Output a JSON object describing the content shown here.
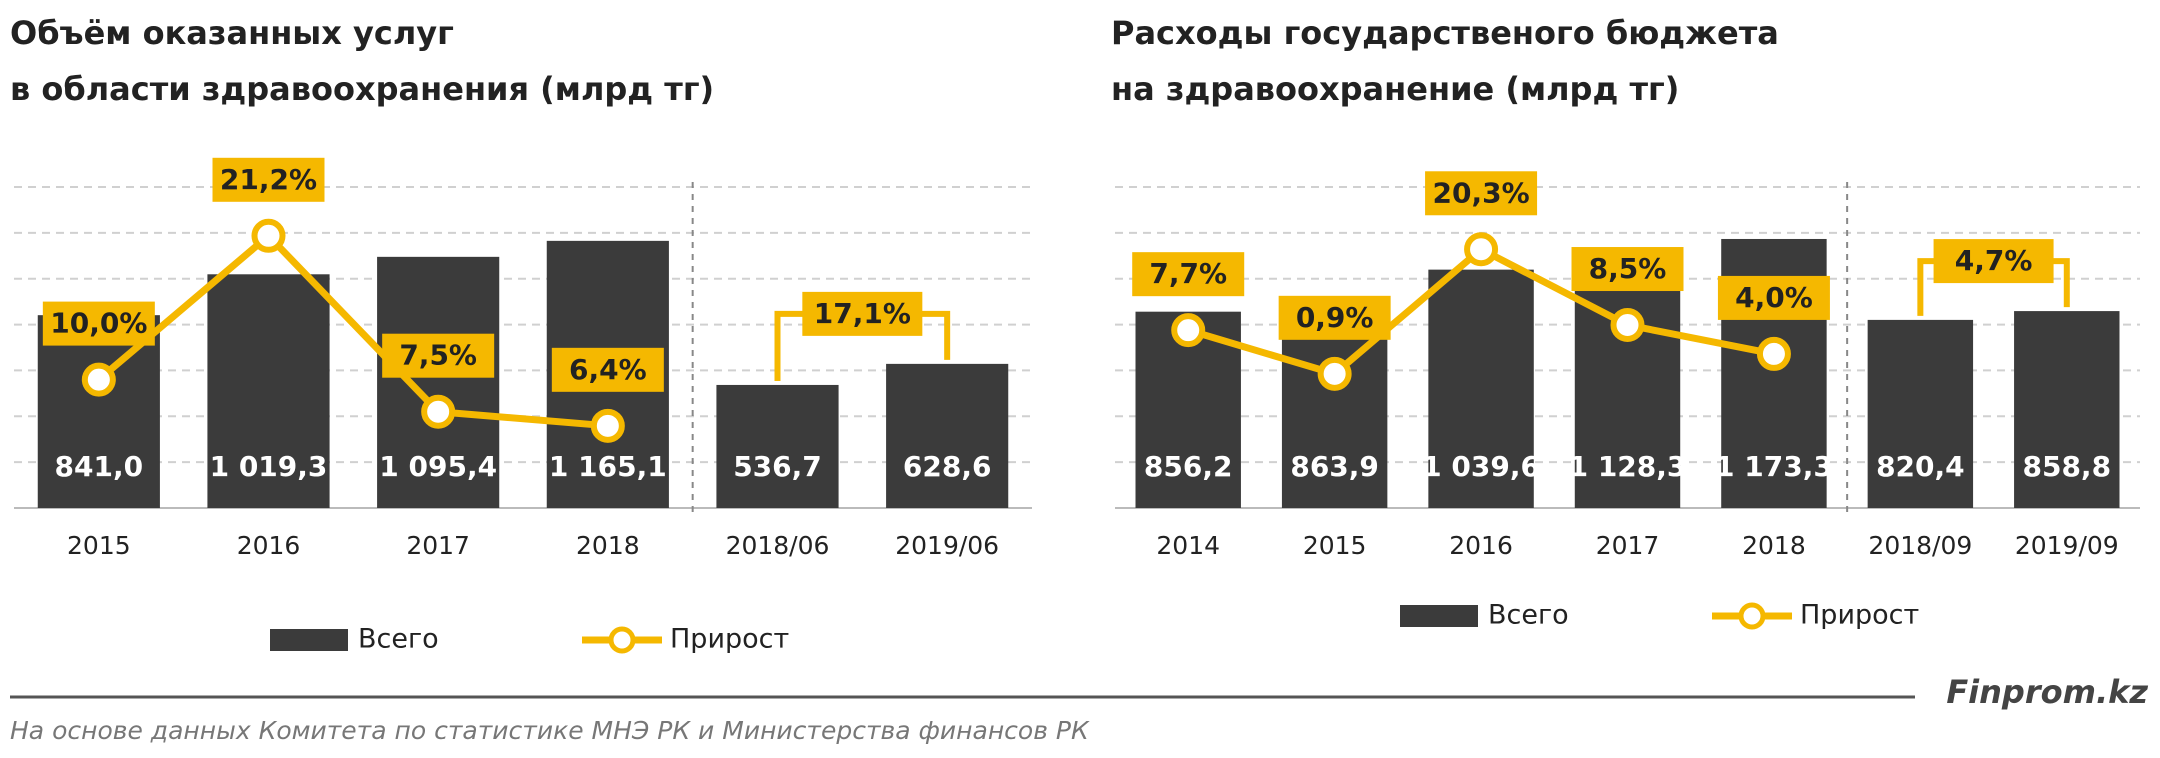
{
  "chart_data": [
    {
      "type": "bar",
      "title": [
        "Объём оказанных услуг",
        "в области здравоохранения (млрд тг)"
      ],
      "categories": [
        "2015",
        "2016",
        "2017",
        "2018",
        "2018/06",
        "2019/06"
      ],
      "ylim": [
        0,
        1400
      ],
      "yticks": [
        0,
        200,
        400,
        600,
        800,
        1000,
        1200,
        1400
      ],
      "grid": true,
      "y2lim": [
        0,
        25
      ],
      "series": [
        {
          "name": "Всего",
          "color": "#3b3b3b",
          "values": [
            841.0,
            1019.3,
            1095.4,
            1165.1,
            536.7,
            628.6
          ],
          "value_labels": [
            "841,0",
            "1 019,3",
            "1 095,4",
            "1 165,1",
            "536,7",
            "628,6"
          ]
        },
        {
          "name": "Прирост",
          "color": "#f5b800",
          "axis": "y2",
          "values": [
            10.0,
            21.2,
            7.5,
            6.4,
            null,
            null
          ],
          "value_labels": [
            "10,0%",
            "21,2%",
            "7,5%",
            "6,4%",
            null,
            null
          ]
        }
      ],
      "period_growth": {
        "value": 17.1,
        "label": "17,1%"
      }
    },
    {
      "type": "bar",
      "title": [
        "Расходы государственого бюджета",
        "на здравоохранение (млрд тг)"
      ],
      "categories": [
        "2014",
        "2015",
        "2016",
        "2017",
        "2018",
        "2018/09",
        "2019/09"
      ],
      "ylim": [
        0,
        1400
      ],
      "yticks": [
        0,
        200,
        400,
        600,
        800,
        1000,
        1200,
        1400
      ],
      "grid": true,
      "y2lim": [
        -20,
        30
      ],
      "series": [
        {
          "name": "Всего",
          "color": "#3b3b3b",
          "values": [
            856.2,
            863.9,
            1039.6,
            1128.3,
            1173.3,
            820.4,
            858.8
          ],
          "value_labels": [
            "856,2",
            "863,9",
            "1 039,6",
            "1 128,3",
            "1 173,3",
            "820,4",
            "858,8"
          ]
        },
        {
          "name": "Прирост",
          "color": "#f5b800",
          "axis": "y2",
          "values": [
            7.7,
            0.9,
            20.3,
            8.5,
            4.0,
            null,
            null
          ],
          "value_labels": [
            "7,7%",
            "0,9%",
            "20,3%",
            "8,5%",
            "4,0%",
            null,
            null
          ]
        }
      ],
      "period_growth": {
        "value": 4.7,
        "label": "4,7%"
      }
    }
  ],
  "brand": "Finprom.kz",
  "source": "На основе данных  Комитета по статистике МНЭ РК и Министерства финансов  РК"
}
